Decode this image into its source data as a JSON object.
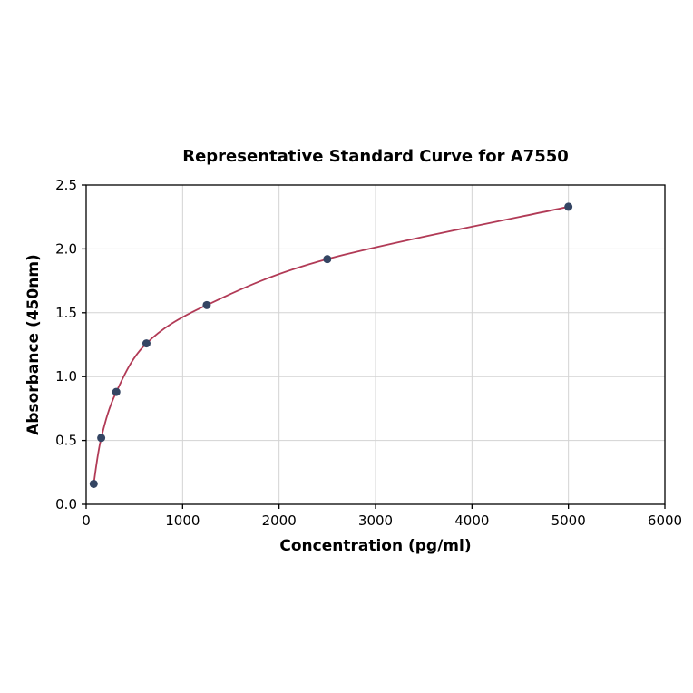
{
  "chart_data": {
    "type": "scatter",
    "title": "Representative Standard Curve for A7550",
    "xlabel": "Concentration (pg/ml)",
    "ylabel": "Absorbance (450nm)",
    "xlim": [
      0,
      6000
    ],
    "ylim": [
      0,
      2.5
    ],
    "x_ticks": [
      0,
      1000,
      2000,
      3000,
      4000,
      5000,
      6000
    ],
    "y_ticks": [
      0.0,
      0.5,
      1.0,
      1.5,
      2.0,
      2.5
    ],
    "grid": true,
    "legend_position": "none",
    "points": {
      "x": [
        78.125,
        156.25,
        312.5,
        625,
        1250,
        2500,
        5000
      ],
      "y": [
        0.16,
        0.52,
        0.88,
        1.26,
        1.56,
        1.92,
        2.33
      ]
    },
    "curve_color": "#b13a56",
    "point_color": "#344563",
    "grid_color": "#d3d3d3",
    "frame_color": "#000000"
  }
}
